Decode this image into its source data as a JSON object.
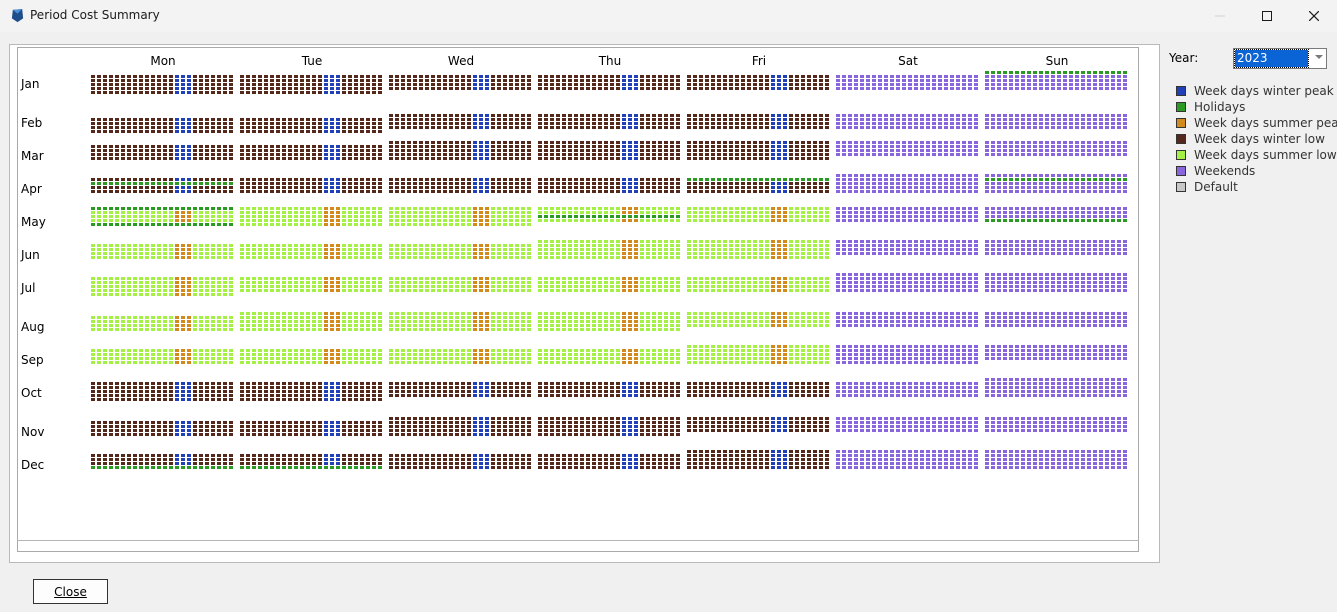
{
  "window": {
    "title": "Period Cost Summary",
    "minimize_icon": "minimize-icon",
    "maximize_icon": "maximize-icon",
    "close_icon": "close-icon"
  },
  "days": [
    "Mon",
    "Tue",
    "Wed",
    "Thu",
    "Fri",
    "Sat",
    "Sun"
  ],
  "months": [
    "Jan",
    "Feb",
    "Mar",
    "Apr",
    "May",
    "Jun",
    "Jul",
    "Aug",
    "Sep",
    "Oct",
    "Nov",
    "Dec"
  ],
  "year": {
    "label": "Year:",
    "selected": "2023"
  },
  "legend": [
    {
      "key": "winter_peak",
      "label": "Week days winter peak",
      "color": "#2140b8"
    },
    {
      "key": "holidays",
      "label": "Holidays",
      "color": "#2a9a22"
    },
    {
      "key": "summer_peak",
      "label": "Week days summer peak",
      "color": "#d38a1c"
    },
    {
      "key": "winter_low",
      "label": "Week days winter low",
      "color": "#55281c"
    },
    {
      "key": "summer_low",
      "label": "Week days summer low",
      "color": "#a4f044"
    },
    {
      "key": "weekends",
      "label": "Weekends",
      "color": "#8a66dc"
    },
    {
      "key": "default",
      "label": "Default",
      "color": "#c8c8c8"
    }
  ],
  "holidays": [
    "01-01",
    "04-07",
    "04-09",
    "04-10",
    "05-01",
    "05-18",
    "05-28",
    "05-29",
    "12-25",
    "12-26"
  ],
  "seasons": {
    "summer_months": [
      5,
      6,
      7,
      8,
      9
    ],
    "peak_hours_per_day": [
      14,
      15,
      16
    ]
  },
  "close_button": {
    "label": "Close"
  }
}
